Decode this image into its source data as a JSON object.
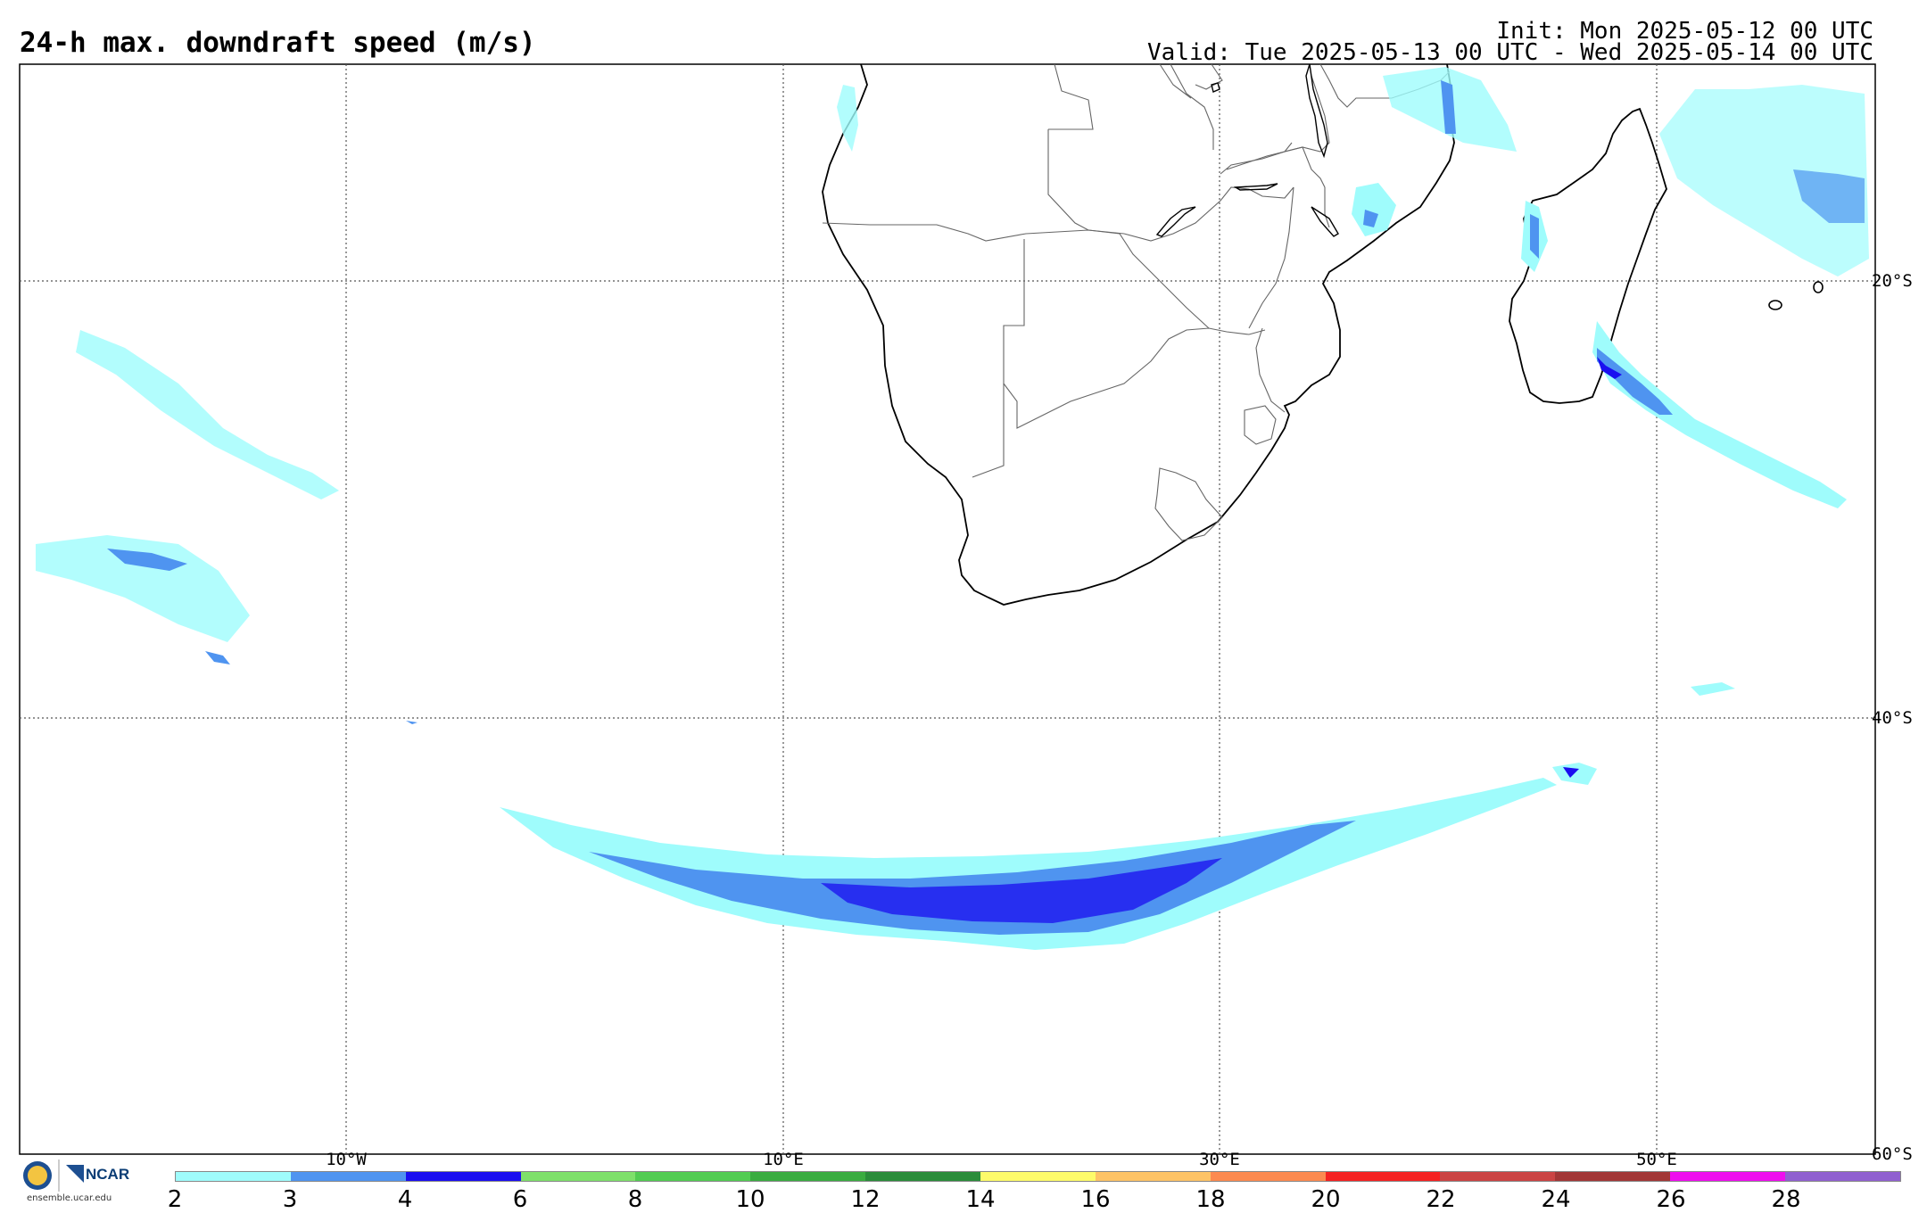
{
  "title": "24-h max. downdraft speed (m/s)",
  "init": "Init: Mon 2025-05-12 00 UTC",
  "valid": "Valid: Tue 2025-05-13 00 UTC - Wed 2025-05-14 00 UTC",
  "lon_labels": [
    "10°W",
    "10°E",
    "30°E",
    "50°E"
  ],
  "lat_labels": [
    "20°S",
    "40°S",
    "60°S"
  ],
  "colorbar": {
    "colors": [
      "#9ffcfc",
      "#4f94f0",
      "#1a0ef0",
      "#7ee06a",
      "#52cc52",
      "#3aac40",
      "#2a8c3a",
      "#fdfb6a",
      "#fdc366",
      "#fc8a50",
      "#f52222",
      "#cb4444",
      "#a23636",
      "#ee0eee",
      "#9060d0"
    ],
    "ticks": [
      "2",
      "3",
      "4",
      "6",
      "8",
      "10",
      "12",
      "14",
      "16",
      "18",
      "20",
      "22",
      "24",
      "26",
      "28"
    ]
  },
  "logo": {
    "org": "NCAR",
    "emblem": "NSF",
    "url": "ensemble.ucar.edu"
  }
}
